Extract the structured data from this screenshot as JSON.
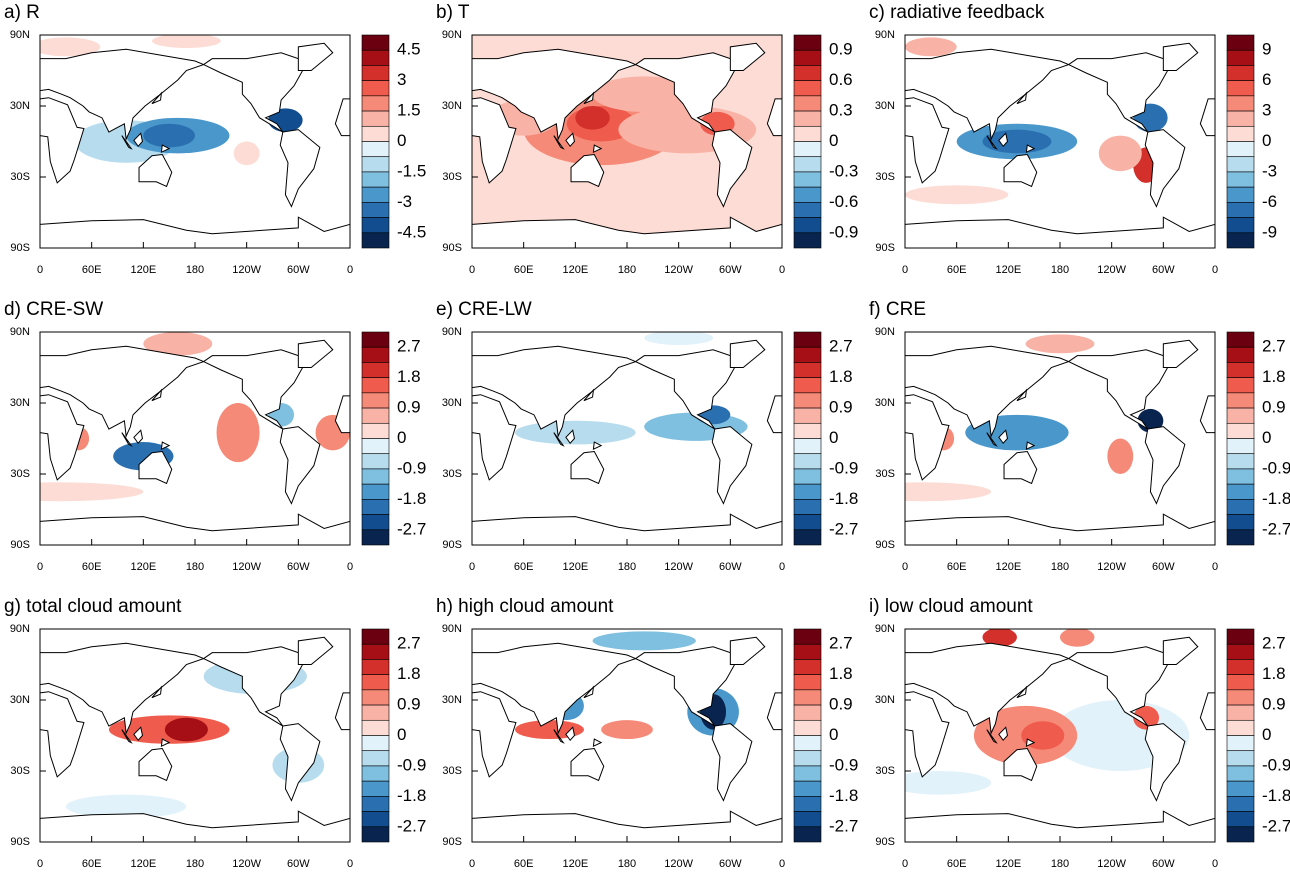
{
  "panels": [
    {
      "title": "a) R",
      "colorbar_labels": [
        "4.5",
        "3",
        "1.5",
        "0",
        "-1.5",
        "-3",
        "-4.5"
      ]
    },
    {
      "title": "b) T",
      "colorbar_labels": [
        "0.9",
        "0.6",
        "0.3",
        "0",
        "-0.3",
        "-0.6",
        "-0.9"
      ]
    },
    {
      "title": "c) radiative feedback",
      "colorbar_labels": [
        "9",
        "6",
        "3",
        "0",
        "-3",
        "-6",
        "-9"
      ]
    },
    {
      "title": "d) CRE-SW",
      "colorbar_labels": [
        "2.7",
        "1.8",
        "0.9",
        "0",
        "-0.9",
        "-1.8",
        "-2.7"
      ]
    },
    {
      "title": "e) CRE-LW",
      "colorbar_labels": [
        "2.7",
        "1.8",
        "0.9",
        "0",
        "-0.9",
        "-1.8",
        "-2.7"
      ]
    },
    {
      "title": "f) CRE",
      "colorbar_labels": [
        "2.7",
        "1.8",
        "0.9",
        "0",
        "-0.9",
        "-1.8",
        "-2.7"
      ]
    },
    {
      "title": "g) total cloud amount",
      "colorbar_labels": [
        "2.7",
        "1.8",
        "0.9",
        "0",
        "-0.9",
        "-1.8",
        "-2.7"
      ]
    },
    {
      "title": "h) high cloud amount",
      "colorbar_labels": [
        "2.7",
        "1.8",
        "0.9",
        "0",
        "-0.9",
        "-1.8",
        "-2.7"
      ]
    },
    {
      "title": "i) low cloud amount",
      "colorbar_labels": [
        "2.7",
        "1.8",
        "0.9",
        "0",
        "-0.9",
        "-1.8",
        "-2.7"
      ]
    }
  ],
  "lat_labels": [
    "90N",
    "30N",
    "30S",
    "90S"
  ],
  "lon_labels": [
    "0",
    "60E",
    "120E",
    "180",
    "120W",
    "60W",
    "0"
  ]
}
